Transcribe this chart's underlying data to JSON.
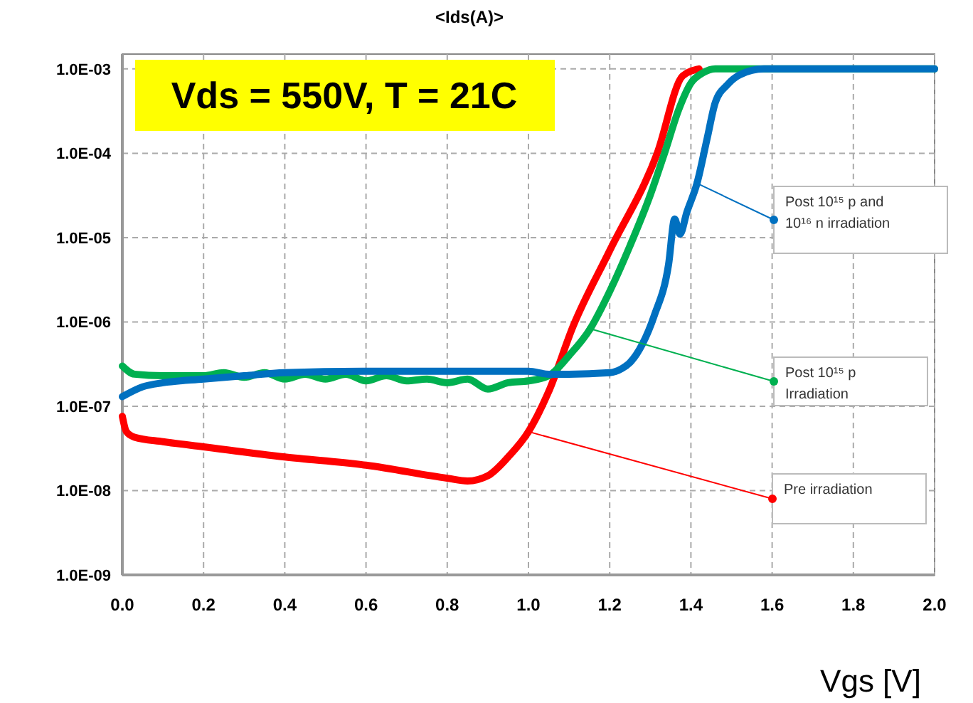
{
  "chart_data": {
    "type": "line",
    "ylabel": "<Ids(A)>",
    "xlabel": "Vgs [V]",
    "log": "y",
    "grid": true,
    "line_style": "solid",
    "marker": "none",
    "xlim": [
      0,
      2
    ],
    "xticks": [
      {
        "value": 0,
        "label": "0.0"
      },
      {
        "value": 0.2,
        "label": "0.2"
      },
      {
        "value": 0.4,
        "label": "0.4"
      },
      {
        "value": 0.6,
        "label": "0.6"
      },
      {
        "value": 0.8,
        "label": "0.8"
      },
      {
        "value": 1,
        "label": "1.0"
      },
      {
        "value": 1.2,
        "label": "1.2"
      },
      {
        "value": 1.4,
        "label": "1.4"
      },
      {
        "value": 1.6,
        "label": "1.6"
      },
      {
        "value": 1.8,
        "label": "1.8"
      },
      {
        "value": 2,
        "label": "2.0"
      }
    ],
    "ylim": [
      1e-09,
      0.0015
    ],
    "yticks": [
      {
        "value": 1e-09,
        "label": "1.0E-09"
      },
      {
        "value": 1e-08,
        "label": "1.0E-08"
      },
      {
        "value": 1e-07,
        "label": "1.0E-07"
      },
      {
        "value": 1e-06,
        "label": "1.0E-06"
      },
      {
        "value": 1e-05,
        "label": "1.0E-05"
      },
      {
        "value": 0.0001,
        "label": "1.0E-04"
      },
      {
        "value": 0.001,
        "label": "1.0E-03"
      }
    ],
    "series": [
      {
        "color": "#0070c0",
        "x": [
          0,
          0.05,
          0.1,
          0.2,
          0.3,
          0.4,
          0.6,
          0.8,
          1.0,
          1.05,
          1.1,
          1.2,
          1.23,
          1.25,
          1.28,
          1.31,
          1.345,
          1.36,
          1.373,
          1.39,
          1.415,
          1.44,
          1.46,
          1.49,
          1.52,
          1.58,
          2.0
        ],
        "values": [
          1.3e-07,
          1.7e-07,
          1.9e-07,
          2.1e-07,
          2.3e-07,
          2.5e-07,
          2.6e-07,
          2.6e-07,
          2.6e-07,
          2.4e-07,
          2.4e-07,
          2.5e-07,
          2.8e-07,
          3.3e-07,
          5.4e-07,
          1.2e-06,
          4.8e-06,
          1.66e-05,
          1.1e-05,
          2e-05,
          4.4e-05,
          0.00015,
          0.0004,
          0.00065,
          0.00085,
          0.001,
          0.001
        ]
      },
      {
        "color": "#00b050",
        "x": [
          0,
          0.03,
          0.1,
          0.2,
          0.25,
          0.3,
          0.35,
          0.4,
          0.45,
          0.5,
          0.55,
          0.6,
          0.65,
          0.7,
          0.75,
          0.8,
          0.85,
          0.9,
          0.95,
          1.0,
          1.05,
          1.1,
          1.152,
          1.2,
          1.25,
          1.3,
          1.335,
          1.37,
          1.4,
          1.43,
          1.46,
          2.0
        ],
        "values": [
          3e-07,
          2.4e-07,
          2.3e-07,
          2.3e-07,
          2.5e-07,
          2.2e-07,
          2.5e-07,
          2.1e-07,
          2.4e-07,
          2.1e-07,
          2.4e-07,
          2e-07,
          2.3e-07,
          2e-07,
          2.1e-07,
          1.9e-07,
          2.1e-07,
          1.6e-07,
          1.9e-07,
          2e-07,
          2.3e-07,
          4e-07,
          8.3e-07,
          2.3e-06,
          8e-06,
          3.2e-05,
          0.0001,
          0.00033,
          0.00068,
          0.0009,
          0.001,
          0.001
        ]
      },
      {
        "color": "#ff0000",
        "x": [
          0,
          0.01,
          0.03,
          0.1,
          0.2,
          0.4,
          0.6,
          0.8,
          0.85,
          0.9,
          0.95,
          1.0,
          1.05,
          1.11,
          1.2,
          1.317,
          1.38,
          1.42
        ],
        "values": [
          7.6e-08,
          5e-08,
          4.3e-08,
          3.8e-08,
          3.3e-08,
          2.5e-08,
          2e-08,
          1.4e-08,
          1.3e-08,
          1.5e-08,
          2.5e-08,
          5e-08,
          1.5e-07,
          8.9e-07,
          7e-06,
          0.0001,
          0.00083,
          0.001
        ]
      }
    ],
    "annotations": [
      "Vds = 550V, T = 21C",
      {
        "text": "Post 10¹⁵ p and 10¹⁶ n irradiation",
        "x": 1.415,
        "y": 4.4e-05
      },
      {
        "text": "Post 10¹⁵ p Irradiation",
        "x": 1.152,
        "y": 8.3e-07
      },
      {
        "text": "Pre irradiation",
        "x": 1.0,
        "y": 5e-08
      }
    ]
  }
}
